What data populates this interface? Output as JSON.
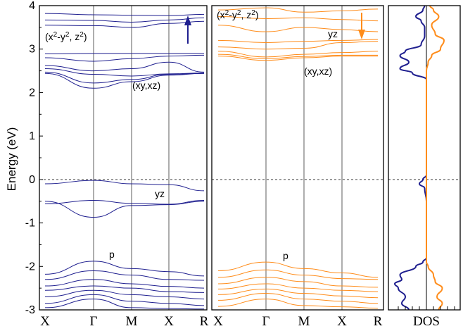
{
  "chart_data": {
    "type": "line",
    "ylabel": "Energy (eV)",
    "ylim": [
      -3,
      4
    ],
    "y_ticks": [
      "-3",
      "-2",
      "-1",
      "0",
      "1",
      "2",
      "3",
      "4"
    ],
    "fermi_level": 0,
    "kpath": [
      "X",
      "Γ",
      "M",
      "X",
      "R"
    ],
    "dos_label": "DOS",
    "colors": {
      "spin_up": "#1f1f8f",
      "spin_down": "#ff8c1a"
    },
    "panels": [
      {
        "spin": "up",
        "arrow": "up",
        "annotations": {
          "eg": {
            "base": "(x",
            "s1": "2",
            "mid": "-y",
            "s2": "2",
            "sep": ", z",
            "s3": "2",
            "end": ")"
          },
          "t2g": "(xy,xz)",
          "yz": "yz",
          "p": "p"
        },
        "bands": [
          [
            3.82,
            3.79,
            3.78,
            3.77,
            3.8
          ],
          [
            3.67,
            3.66,
            3.62,
            3.67,
            3.72
          ],
          [
            3.55,
            3.54,
            3.5,
            3.59,
            3.64
          ],
          [
            2.89,
            2.9,
            2.9,
            2.9,
            2.9
          ],
          [
            2.8,
            2.72,
            2.78,
            2.84,
            2.86
          ],
          [
            2.62,
            2.5,
            2.55,
            2.7,
            2.47
          ],
          [
            2.55,
            2.42,
            2.38,
            2.43,
            2.45
          ],
          [
            2.47,
            2.22,
            2.3,
            2.42,
            2.44
          ],
          [
            2.44,
            2.1,
            2.25,
            2.4,
            2.44
          ],
          [
            -0.1,
            -0.02,
            -0.1,
            -0.12,
            -0.26
          ],
          [
            -0.56,
            -0.48,
            -0.55,
            -0.57,
            -0.48
          ],
          [
            -0.5,
            -0.87,
            -0.6,
            -0.58,
            -0.5
          ],
          [
            -2.18,
            -1.88,
            -2.05,
            -2.12,
            -2.22
          ],
          [
            -2.3,
            -2.1,
            -2.2,
            -2.3,
            -2.32
          ],
          [
            -2.45,
            -2.3,
            -2.4,
            -2.46,
            -2.5
          ],
          [
            -2.55,
            -2.45,
            -2.5,
            -2.58,
            -2.6
          ],
          [
            -2.7,
            -2.55,
            -2.65,
            -2.7,
            -2.75
          ],
          [
            -2.85,
            -2.65,
            -2.8,
            -2.85,
            -2.9
          ],
          [
            -2.95,
            -2.75,
            -2.95,
            -2.97,
            -2.98
          ]
        ]
      },
      {
        "spin": "down",
        "arrow": "down",
        "annotations": {
          "eg": {
            "base": "(x",
            "s1": "2",
            "mid": "-y",
            "s2": "2",
            "sep": ", z",
            "s3": "2",
            "end": ")"
          },
          "t2g": "(xy,xz)",
          "yz": "yz",
          "p": "p"
        },
        "bands": [
          [
            3.9,
            3.95,
            3.85,
            3.88,
            3.92
          ],
          [
            3.75,
            3.7,
            3.72,
            3.68,
            3.65
          ],
          [
            3.55,
            3.4,
            3.5,
            3.45,
            3.4
          ],
          [
            3.2,
            3.15,
            3.18,
            3.2,
            3.22
          ],
          [
            3.05,
            3.0,
            3.02,
            3.15,
            3.18
          ],
          [
            2.95,
            2.82,
            2.88,
            2.92,
            2.95
          ],
          [
            2.88,
            2.78,
            2.83,
            2.86,
            2.86
          ],
          [
            2.84,
            2.74,
            2.8,
            2.84,
            2.84
          ],
          [
            -2.1,
            -1.9,
            -2.05,
            -2.15,
            -2.25
          ],
          [
            -2.25,
            -2.08,
            -2.2,
            -2.28,
            -2.3
          ],
          [
            -2.4,
            -2.25,
            -2.35,
            -2.45,
            -2.48
          ],
          [
            -2.52,
            -2.4,
            -2.5,
            -2.55,
            -2.58
          ],
          [
            -2.65,
            -2.52,
            -2.62,
            -2.68,
            -2.72
          ],
          [
            -2.78,
            -2.62,
            -2.75,
            -2.8,
            -2.85
          ],
          [
            -2.92,
            -2.75,
            -2.9,
            -2.93,
            -2.96
          ]
        ]
      }
    ],
    "dos": {
      "spin_up": {
        "y": [
          -3.0,
          -2.85,
          -2.7,
          -2.5,
          -2.4,
          -2.3,
          -2.2,
          -2.0,
          -1.9,
          -1.8,
          -0.5,
          -0.2,
          -0.1,
          0.0,
          0.1,
          2.3,
          2.45,
          2.55,
          2.7,
          2.85,
          2.95,
          3.1,
          3.3,
          3.5,
          3.65,
          3.75,
          3.9,
          4.0
        ],
        "value": [
          5.0,
          7.0,
          6.0,
          8.0,
          9.0,
          7.0,
          7.5,
          3.0,
          1.0,
          0.0,
          0.0,
          0.5,
          2.0,
          1.0,
          0.0,
          0.0,
          4.0,
          7.5,
          5.0,
          7.5,
          6.0,
          1.5,
          0.5,
          0.5,
          1.5,
          3.0,
          1.0,
          0.5
        ]
      },
      "spin_down": {
        "y": [
          -3.0,
          -2.85,
          -2.7,
          -2.5,
          -2.35,
          -2.2,
          -2.0,
          -1.9,
          -1.85,
          2.5,
          2.7,
          2.85,
          3.0,
          3.2,
          3.35,
          3.55,
          3.75,
          3.9,
          4.0
        ],
        "value": [
          3.5,
          4.5,
          3.0,
          4.5,
          2.5,
          2.0,
          0.5,
          0.0,
          0.0,
          0.0,
          0.5,
          1.5,
          4.0,
          5.0,
          2.5,
          1.5,
          3.5,
          2.0,
          1.0
        ]
      }
    }
  }
}
